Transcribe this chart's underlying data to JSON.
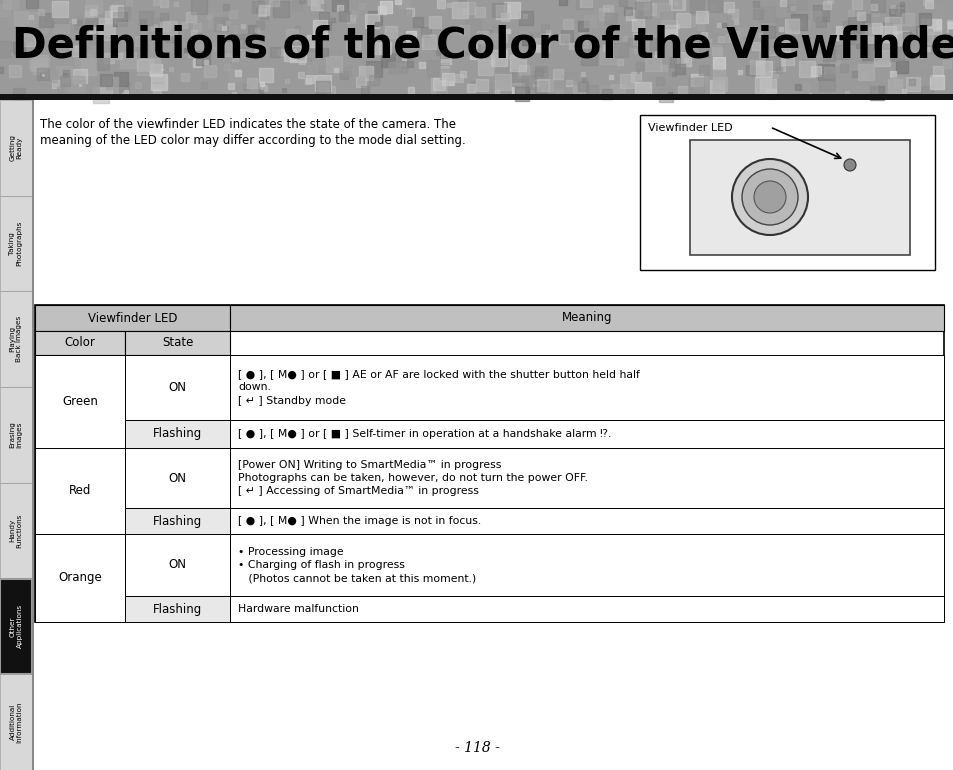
{
  "title": "Definitions of the Color of the Viewfinder LED",
  "page_num": "- 118 -",
  "intro_text_line1": "The color of the viewfinder LED indicates the state of the camera. The",
  "intro_text_line2": "meaning of the LED color may differ according to the mode dial setting.",
  "viewfinder_label": "Viewfinder LED",
  "sidebar_labels": [
    "Getting\nReady",
    "Taking\nPhotographs",
    "Playing\nBack Images",
    "Erasing\nImages",
    "Handy\nFunctions",
    "Other\nApplications",
    "Additional\nInformation"
  ],
  "sidebar_active": 5,
  "table_header_col1": "Viewfinder LED",
  "table_header_col1a": "Color",
  "table_header_col1b": "State",
  "table_header_col2": "Meaning",
  "table_data": [
    {
      "color": "Green",
      "state": "ON",
      "meaning": "[ ● ], [ M● ] or [ ■ ] AE or AF are locked with the shutter button held half\ndown.\n[ ↵ ] Standby mode"
    },
    {
      "color": "",
      "state": "Flashing",
      "meaning": "[ ● ], [ M● ] or [ ■ ] Self-timer in operation at a handshake alarm ⁉."
    },
    {
      "color": "Red",
      "state": "ON",
      "meaning": "[Power ON] Writing to SmartMedia™ in progress\nPhotographs can be taken, however, do not turn the power OFF.\n[ ↵ ] Accessing of SmartMedia™ in progress"
    },
    {
      "color": "",
      "state": "Flashing",
      "meaning": "[ ● ], [ M● ] When the image is not in focus."
    },
    {
      "color": "Orange",
      "state": "ON",
      "meaning": "• Processing image\n• Charging of flash in progress\n   (Photos cannot be taken at this moment.)"
    },
    {
      "color": "",
      "state": "Flashing",
      "meaning": "Hardware malfunction"
    }
  ],
  "bg_color": "#ffffff",
  "header_bg": "#c0c0c0",
  "subheader_bg": "#d0d0d0",
  "flashing_bg": "#e8e8e8",
  "table_border": "#000000",
  "title_bg_top": "#a0a0a0",
  "title_bar_color": "#222222",
  "sidebar_active_bg": "#111111",
  "sidebar_active_fg": "#ffffff",
  "sidebar_inactive_bg": "#d8d8d8",
  "sidebar_inactive_fg": "#000000",
  "sidebar_border": "#999999"
}
